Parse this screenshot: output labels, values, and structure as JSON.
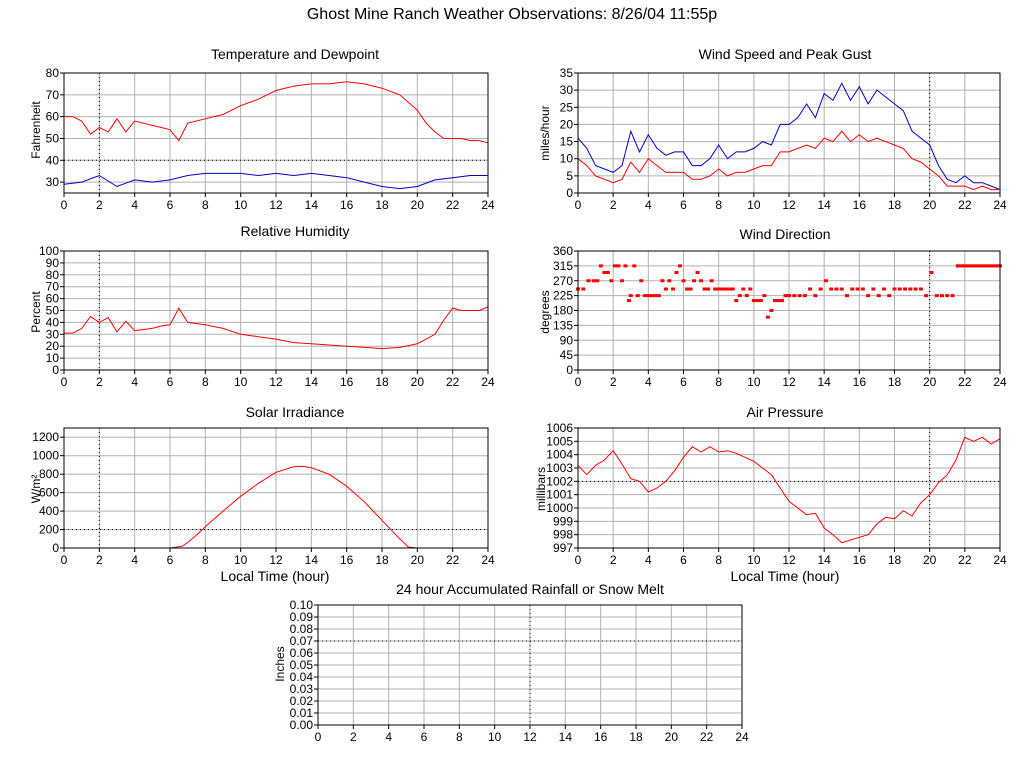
{
  "page": {
    "title": "Ghost Mine Ranch Weather Observations: 8/26/04 11:55p",
    "xaxis_label": "Local Time (hour)",
    "colors": {
      "red": "#ff0000",
      "blue": "#0000cc",
      "grid": "#b0b0b0"
    }
  },
  "chart_data": [
    {
      "id": "temp",
      "type": "line",
      "title": "Temperature and Dewpoint",
      "ylabel": "Fahrenheit",
      "xlabel": "",
      "xlim": [
        0,
        24
      ],
      "ylim": [
        25,
        80
      ],
      "xticks": [
        0,
        2,
        4,
        6,
        8,
        10,
        12,
        14,
        16,
        18,
        20,
        22,
        24
      ],
      "yticks": [
        30,
        40,
        50,
        60,
        70,
        80
      ],
      "grid": true,
      "ref_line": {
        "axis": "y",
        "value": 40
      },
      "series": [
        {
          "color": "#ff0000",
          "x": [
            0,
            0.5,
            1,
            1.5,
            2,
            2.5,
            3,
            3.5,
            4,
            4.5,
            5,
            5.5,
            6,
            6.5,
            7,
            8,
            9,
            10,
            11,
            12,
            13,
            14,
            15,
            16,
            17,
            18,
            19,
            20,
            20.5,
            21,
            21.5,
            22,
            22.5,
            23,
            23.5,
            24
          ],
          "y": [
            60,
            60,
            58,
            52,
            55,
            53,
            59,
            53,
            58,
            57,
            56,
            55,
            54,
            49,
            57,
            59,
            61,
            65,
            68,
            72,
            74,
            75,
            75,
            76,
            75,
            73,
            70,
            63,
            57,
            53,
            50,
            50,
            50,
            49,
            49,
            48
          ]
        },
        {
          "color": "#0000cc",
          "x": [
            0,
            1,
            2,
            3,
            4,
            5,
            6,
            7,
            8,
            9,
            10,
            11,
            12,
            13,
            14,
            15,
            16,
            17,
            18,
            19,
            20,
            21,
            22,
            23,
            24
          ],
          "y": [
            29,
            30,
            33,
            28,
            31,
            30,
            31,
            33,
            34,
            34,
            34,
            33,
            34,
            33,
            34,
            33,
            32,
            30,
            28,
            27,
            28,
            31,
            32,
            33,
            33
          ]
        }
      ]
    },
    {
      "id": "wind",
      "type": "line",
      "title": "Wind Speed and Peak Gust",
      "ylabel": "miles/hour",
      "xlabel": "",
      "xlim": [
        0,
        24
      ],
      "ylim": [
        0,
        35
      ],
      "xticks": [
        0,
        2,
        4,
        6,
        8,
        10,
        12,
        14,
        16,
        18,
        20,
        22,
        24
      ],
      "yticks": [
        0,
        5,
        10,
        15,
        20,
        25,
        30,
        35
      ],
      "grid": true,
      "ref_line": {
        "axis": "y",
        "value": 0
      },
      "series": [
        {
          "color": "#0000cc",
          "x": [
            0,
            0.5,
            1,
            1.5,
            2,
            2.5,
            3,
            3.5,
            4,
            4.5,
            5,
            5.5,
            6,
            6.5,
            7,
            7.5,
            8,
            8.5,
            9,
            9.5,
            10,
            10.5,
            11,
            11.5,
            12,
            12.5,
            13,
            13.5,
            14,
            14.5,
            15,
            15.5,
            16,
            16.5,
            17,
            17.5,
            18,
            18.5,
            19,
            19.5,
            20,
            20.5,
            21,
            21.5,
            22,
            22.5,
            23,
            23.5,
            24
          ],
          "y": [
            16,
            13,
            8,
            7,
            6,
            8,
            18,
            12,
            17,
            13,
            11,
            12,
            12,
            8,
            8,
            10,
            14,
            10,
            12,
            12,
            13,
            15,
            14,
            20,
            20,
            22,
            26,
            22,
            29,
            27,
            32,
            27,
            31,
            26,
            30,
            28,
            26,
            24,
            18,
            16,
            14,
            8,
            4,
            3,
            5,
            3,
            3,
            2,
            1
          ]
        },
        {
          "color": "#ff0000",
          "x": [
            0,
            0.5,
            1,
            1.5,
            2,
            2.5,
            3,
            3.5,
            4,
            4.5,
            5,
            5.5,
            6,
            6.5,
            7,
            7.5,
            8,
            8.5,
            9,
            9.5,
            10,
            10.5,
            11,
            11.5,
            12,
            12.5,
            13,
            13.5,
            14,
            14.5,
            15,
            15.5,
            16,
            16.5,
            17,
            17.5,
            18,
            18.5,
            19,
            19.5,
            20,
            20.5,
            21,
            21.5,
            22,
            22.5,
            23,
            23.5,
            24
          ],
          "y": [
            10,
            8,
            5,
            4,
            3,
            4,
            9,
            6,
            10,
            8,
            6,
            6,
            6,
            4,
            4,
            5,
            7,
            5,
            6,
            6,
            7,
            8,
            8,
            12,
            12,
            13,
            14,
            13,
            16,
            15,
            18,
            15,
            17,
            15,
            16,
            15,
            14,
            13,
            10,
            9,
            7,
            5,
            2,
            2,
            2,
            1,
            2,
            1,
            1
          ]
        }
      ]
    },
    {
      "id": "rh",
      "type": "line",
      "title": "Relative Humidity",
      "ylabel": "Percent",
      "xlabel": "",
      "xlim": [
        0,
        24
      ],
      "ylim": [
        0,
        100
      ],
      "xticks": [
        0,
        2,
        4,
        6,
        8,
        10,
        12,
        14,
        16,
        18,
        20,
        22,
        24
      ],
      "yticks": [
        0,
        10,
        20,
        30,
        40,
        50,
        60,
        70,
        80,
        90,
        100
      ],
      "grid": true,
      "ref_line": {
        "axis": "y",
        "value": 0
      },
      "series": [
        {
          "color": "#ff0000",
          "x": [
            0,
            0.5,
            1,
            1.5,
            2,
            2.5,
            3,
            3.5,
            4,
            4.5,
            5,
            5.5,
            6,
            6.5,
            7,
            8,
            9,
            10,
            11,
            12,
            13,
            14,
            15,
            16,
            17,
            18,
            19,
            20,
            20.5,
            21,
            21.5,
            22,
            22.5,
            23,
            23.5,
            24
          ],
          "y": [
            31,
            31,
            35,
            45,
            40,
            44,
            32,
            41,
            33,
            34,
            35,
            37,
            38,
            52,
            40,
            38,
            35,
            30,
            28,
            26,
            23,
            22,
            21,
            20,
            19,
            18,
            19,
            22,
            26,
            30,
            42,
            52,
            50,
            50,
            50,
            53
          ]
        }
      ]
    },
    {
      "id": "dir",
      "type": "scatter",
      "title": "Wind Direction",
      "ylabel": "degrees",
      "xlabel": "",
      "xlim": [
        0,
        24
      ],
      "ylim": [
        0,
        360
      ],
      "xticks": [
        0,
        2,
        4,
        6,
        8,
        10,
        12,
        14,
        16,
        18,
        20,
        22,
        24
      ],
      "yticks": [
        0,
        45,
        90,
        135,
        180,
        225,
        270,
        315,
        360
      ],
      "grid": true,
      "ref_line": {
        "axis": "y",
        "value": 0
      },
      "series": [
        {
          "color": "#ff0000",
          "x": [
            0,
            0.3,
            0.6,
            0.9,
            1.1,
            1.3,
            1.5,
            1.7,
            1.9,
            2.1,
            2.3,
            2.5,
            2.7,
            2.9,
            3.0,
            3.2,
            3.4,
            3.6,
            3.8,
            4.0,
            4.2,
            4.4,
            4.6,
            4.8,
            5.0,
            5.2,
            5.4,
            5.6,
            5.8,
            6.0,
            6.2,
            6.4,
            6.6,
            6.8,
            7.0,
            7.2,
            7.4,
            7.6,
            7.8,
            8.0,
            8.2,
            8.4,
            8.6,
            8.8,
            9.0,
            9.2,
            9.4,
            9.6,
            9.8,
            10.0,
            10.2,
            10.4,
            10.6,
            10.8,
            11.0,
            11.2,
            11.4,
            11.6,
            11.8,
            12.0,
            12.3,
            12.6,
            12.9,
            13.2,
            13.5,
            13.8,
            14.1,
            14.4,
            14.7,
            15.0,
            15.3,
            15.6,
            15.9,
            16.2,
            16.5,
            16.8,
            17.1,
            17.4,
            17.7,
            18.0,
            18.3,
            18.6,
            18.9,
            19.2,
            19.5,
            19.8,
            20.1,
            20.4,
            20.7,
            21.0,
            21.3,
            21.6,
            21.9,
            22.2,
            22.5,
            22.8,
            23.1,
            23.4,
            23.7,
            24.0
          ],
          "y": [
            245,
            245,
            270,
            270,
            270,
            315,
            295,
            295,
            270,
            315,
            315,
            270,
            315,
            210,
            225,
            315,
            225,
            270,
            225,
            225,
            225,
            225,
            225,
            270,
            245,
            270,
            245,
            295,
            315,
            270,
            245,
            245,
            270,
            295,
            270,
            245,
            245,
            270,
            245,
            245,
            245,
            245,
            245,
            245,
            210,
            225,
            245,
            225,
            245,
            210,
            210,
            210,
            225,
            160,
            180,
            210,
            210,
            210,
            225,
            225,
            225,
            225,
            225,
            245,
            225,
            245,
            270,
            245,
            245,
            245,
            225,
            245,
            245,
            245,
            225,
            245,
            225,
            245,
            225,
            245,
            245,
            245,
            245,
            245,
            245,
            225,
            295,
            225,
            225,
            225,
            225,
            315,
            315,
            315,
            315,
            315,
            315,
            315,
            315,
            315
          ]
        }
      ]
    },
    {
      "id": "solar",
      "type": "line",
      "title": "Solar Irradiance",
      "ylabel": "W/m²",
      "xlabel": "Local Time (hour)",
      "xlim": [
        0,
        24
      ],
      "ylim": [
        0,
        1300
      ],
      "xticks": [
        0,
        2,
        4,
        6,
        8,
        10,
        12,
        14,
        16,
        18,
        20,
        22,
        24
      ],
      "yticks": [
        0,
        200,
        400,
        600,
        800,
        1000,
        1200
      ],
      "grid": true,
      "ref_line": {
        "axis": "y",
        "value": 200
      },
      "series": [
        {
          "color": "#ff0000",
          "x": [
            0,
            6,
            6.7,
            7,
            7.5,
            8,
            9,
            10,
            11,
            12,
            13,
            13.5,
            14,
            15,
            16,
            17,
            18,
            19,
            19.5,
            20,
            24
          ],
          "y": [
            0,
            0,
            20,
            60,
            140,
            230,
            400,
            560,
            700,
            820,
            880,
            885,
            870,
            800,
            670,
            500,
            300,
            100,
            10,
            0,
            0
          ]
        }
      ]
    },
    {
      "id": "pressure",
      "type": "line",
      "title": "Air Pressure",
      "ylabel": "millibars",
      "xlabel": "Local Time (hour)",
      "xlim": [
        0,
        24
      ],
      "ylim": [
        997,
        1006
      ],
      "xticks": [
        0,
        2,
        4,
        6,
        8,
        10,
        12,
        14,
        16,
        18,
        20,
        22,
        24
      ],
      "yticks": [
        997,
        998,
        999,
        1000,
        1001,
        1002,
        1003,
        1004,
        1005,
        1006
      ],
      "grid": true,
      "ref_line": {
        "axis": "y",
        "value": 1002
      },
      "series": [
        {
          "color": "#ff0000",
          "x": [
            0,
            0.5,
            1,
            1.5,
            2,
            2.5,
            3,
            3.5,
            4,
            4.5,
            5,
            5.5,
            6,
            6.5,
            7,
            7.5,
            8,
            8.5,
            9,
            9.5,
            10,
            10.5,
            11,
            11.5,
            12,
            12.5,
            13,
            13.5,
            14,
            14.5,
            15,
            15.5,
            16,
            16.5,
            17,
            17.5,
            18,
            18.5,
            19,
            19.5,
            20,
            20.5,
            21,
            21.5,
            22,
            22.5,
            23,
            23.5,
            24
          ],
          "y": [
            1003.2,
            1002.5,
            1003.2,
            1003.6,
            1004.3,
            1003.3,
            1002.2,
            1002.0,
            1001.2,
            1001.5,
            1002.0,
            1002.8,
            1003.8,
            1004.6,
            1004.2,
            1004.6,
            1004.2,
            1004.3,
            1004.1,
            1003.8,
            1003.5,
            1003.0,
            1002.5,
            1001.5,
            1000.5,
            1000.0,
            999.5,
            999.6,
            998.5,
            998.0,
            997.4,
            997.6,
            997.8,
            998.0,
            998.8,
            999.3,
            999.2,
            999.8,
            999.4,
            1000.4,
            1001.0,
            1001.9,
            1002.5,
            1003.6,
            1005.3,
            1005.0,
            1005.3,
            1004.8,
            1005.2
          ]
        }
      ]
    },
    {
      "id": "rain",
      "type": "line",
      "title": "24 hour Accumulated Rainfall or Snow Melt",
      "ylabel": "Inches",
      "xlabel": "",
      "xlim": [
        0,
        24
      ],
      "ylim": [
        0,
        0.1
      ],
      "xticks": [
        0,
        2,
        4,
        6,
        8,
        10,
        12,
        14,
        16,
        18,
        20,
        22,
        24
      ],
      "yticks": [
        0.0,
        0.01,
        0.02,
        0.03,
        0.04,
        0.05,
        0.06,
        0.07,
        0.08,
        0.09,
        0.1
      ],
      "ytick_decimals": 2,
      "grid": true,
      "ref_line": {
        "axis": "y",
        "value": 0.07
      },
      "series": [
        {
          "color": "#ff0000",
          "x": [
            0,
            24
          ],
          "y": [
            0,
            0
          ]
        }
      ]
    }
  ]
}
